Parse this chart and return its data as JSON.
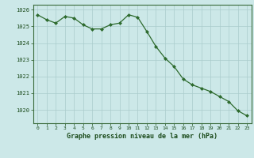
{
  "x": [
    0,
    1,
    2,
    3,
    4,
    5,
    6,
    7,
    8,
    9,
    10,
    11,
    12,
    13,
    14,
    15,
    16,
    17,
    18,
    19,
    20,
    21,
    22,
    23
  ],
  "y": [
    1025.7,
    1025.4,
    1025.2,
    1025.6,
    1025.5,
    1025.1,
    1024.85,
    1024.85,
    1025.1,
    1025.2,
    1025.7,
    1025.55,
    1024.7,
    1023.8,
    1023.1,
    1022.6,
    1021.85,
    1021.5,
    1021.3,
    1021.1,
    1020.8,
    1020.5,
    1019.95,
    1019.65
  ],
  "line_color": "#2d6a2d",
  "marker_color": "#2d6a2d",
  "bg_color": "#cce8e8",
  "grid_color": "#aacccc",
  "axis_label_color": "#1a4a1a",
  "tick_label_color": "#1a4a1a",
  "ylim_min": 1019.2,
  "ylim_max": 1026.3,
  "yticks": [
    1020,
    1021,
    1022,
    1023,
    1024,
    1025,
    1026
  ],
  "xlabel": "Graphe pression niveau de la mer (hPa)"
}
